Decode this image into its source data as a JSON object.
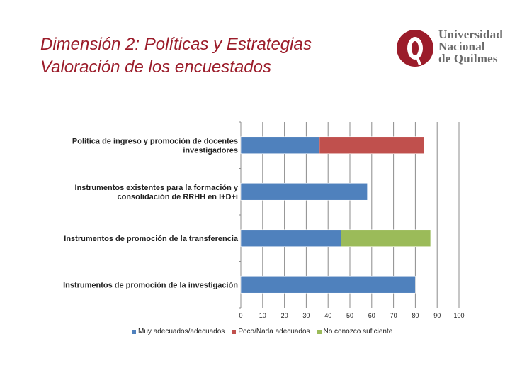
{
  "header": {
    "title_line1": "Dimensión 2: Políticas y Estrategias",
    "title_line2": "Valoración de los encuestados"
  },
  "logo": {
    "line1": "Universidad",
    "line2": "Nacional",
    "line3": "de Quilmes",
    "color": "#9b1c2a"
  },
  "chart_data": {
    "type": "bar",
    "orientation": "horizontal",
    "stacked": true,
    "title": "",
    "xlabel": "",
    "ylabel": "",
    "xlim": [
      0,
      100
    ],
    "ticks": [
      0,
      10,
      20,
      30,
      40,
      50,
      60,
      70,
      80,
      90,
      100
    ],
    "grid": true,
    "legend_position": "bottom",
    "categories": [
      [
        "Política de ingreso y promoción de docentes",
        "investigadores"
      ],
      [
        "Instrumentos existentes para la formación y",
        "consolidación de RRHH en I+D+i"
      ],
      [
        "Instrumentos de promoción de la transferencia"
      ],
      [
        "Instrumentos de promoción de la investigación"
      ]
    ],
    "series": [
      {
        "name": "Muy adecuados/adecuados",
        "color": "#4f81bd",
        "values": [
          36,
          58,
          46,
          80
        ]
      },
      {
        "name": "Poco/Nada adecuados",
        "color": "#c0504d",
        "values": [
          48,
          0,
          0,
          0
        ]
      },
      {
        "name": "No conozco suficiente",
        "color": "#9bbb59",
        "values": [
          0,
          0,
          41,
          0
        ]
      }
    ]
  }
}
